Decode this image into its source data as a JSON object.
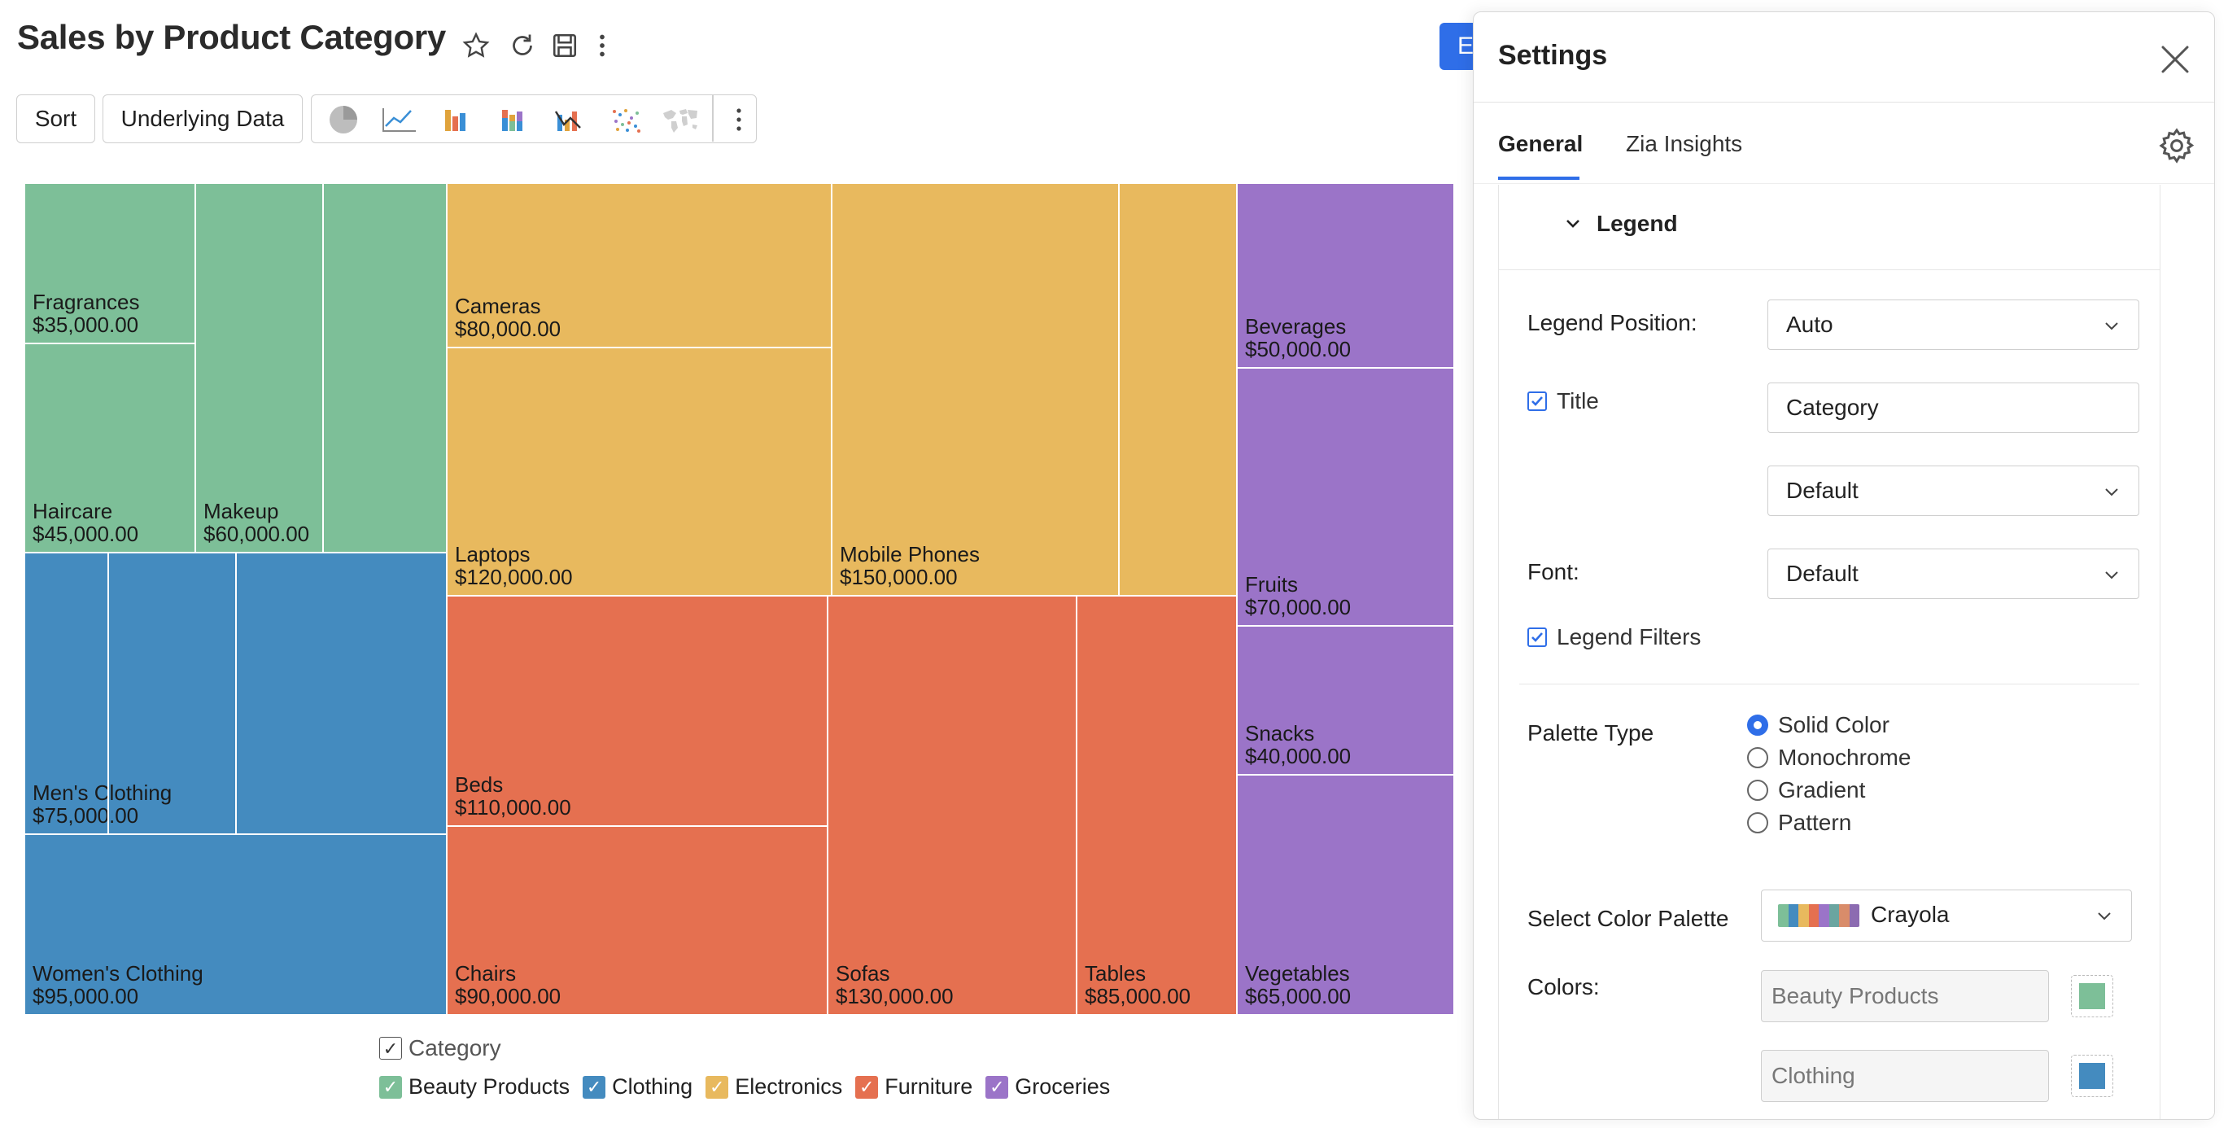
{
  "header": {
    "title": "Sales by Product Category",
    "edit_button_label": "E"
  },
  "toolbar": {
    "sort_label": "Sort",
    "underlying_data_label": "Underlying Data",
    "chart_types": [
      "pie-chart-icon",
      "line-chart-icon",
      "bar-chart-icon",
      "stacked-bar-chart-icon",
      "combo-chart-icon",
      "scatter-chart-icon",
      "map-chart-icon"
    ]
  },
  "chart_data": {
    "type": "treemap",
    "title": "Sales by Product Category",
    "legend_title": "Category",
    "categories": [
      {
        "name": "Beauty Products",
        "color": "#7dbf98",
        "items": [
          {
            "label": "Fragrances",
            "value": 35000,
            "value_label": "$35,000.00"
          },
          {
            "label": "Haircare",
            "value": 45000,
            "value_label": "$45,000.00"
          },
          {
            "label": "Makeup",
            "value": 60000,
            "value_label": "$60,000.00"
          }
        ]
      },
      {
        "name": "Clothing",
        "color": "#448bbf",
        "items": [
          {
            "label": "Men's Clothing",
            "value": 75000,
            "value_label": "$75,000.00"
          },
          {
            "label": "Women's Clothing",
            "value": 95000,
            "value_label": "$95,000.00"
          }
        ]
      },
      {
        "name": "Electronics",
        "color": "#e8b95e",
        "items": [
          {
            "label": "Cameras",
            "value": 80000,
            "value_label": "$80,000.00"
          },
          {
            "label": "Laptops",
            "value": 120000,
            "value_label": "$120,000.00"
          },
          {
            "label": "Mobile Phones",
            "value": 150000,
            "value_label": "$150,000.00"
          }
        ]
      },
      {
        "name": "Furniture",
        "color": "#e57050",
        "items": [
          {
            "label": "Beds",
            "value": 110000,
            "value_label": "$110,000.00"
          },
          {
            "label": "Chairs",
            "value": 90000,
            "value_label": "$90,000.00"
          },
          {
            "label": "Sofas",
            "value": 130000,
            "value_label": "$130,000.00"
          },
          {
            "label": "Tables",
            "value": 85000,
            "value_label": "$85,000.00"
          }
        ]
      },
      {
        "name": "Groceries",
        "color": "#9b74c8",
        "items": [
          {
            "label": "Beverages",
            "value": 50000,
            "value_label": "$50,000.00"
          },
          {
            "label": "Fruits",
            "value": 70000,
            "value_label": "$70,000.00"
          },
          {
            "label": "Snacks",
            "value": 40000,
            "value_label": "$40,000.00"
          },
          {
            "label": "Vegetables",
            "value": 65000,
            "value_label": "$65,000.00"
          }
        ]
      }
    ]
  },
  "settings": {
    "title": "Settings",
    "tabs": {
      "general": "General",
      "zia_insights": "Zia Insights"
    },
    "section_title": "Legend",
    "legend_position_label": "Legend Position:",
    "legend_position_value": "Auto",
    "title_checkbox_label": "Title",
    "title_checked": true,
    "title_value": "Category",
    "title_style_value": "Default",
    "font_label": "Font:",
    "font_value": "Default",
    "legend_filters_label": "Legend Filters",
    "legend_filters_checked": true,
    "palette_type_label": "Palette Type",
    "palette_options": [
      "Solid Color",
      "Monochrome",
      "Gradient",
      "Pattern"
    ],
    "palette_selected": "Solid Color",
    "select_color_palette_label": "Select Color Palette",
    "color_palette_value": "Crayola",
    "palette_swatch_colors": [
      "#7dbf98",
      "#448bbf",
      "#e8b95e",
      "#e57050",
      "#9b74c8",
      "#6aa5a0",
      "#d98c6a",
      "#8c6bb1"
    ],
    "colors_label": "Colors:",
    "color_entries": [
      {
        "name": "Beauty Products",
        "color": "#7dbf98"
      },
      {
        "name": "Clothing",
        "color": "#448bbf"
      }
    ]
  }
}
